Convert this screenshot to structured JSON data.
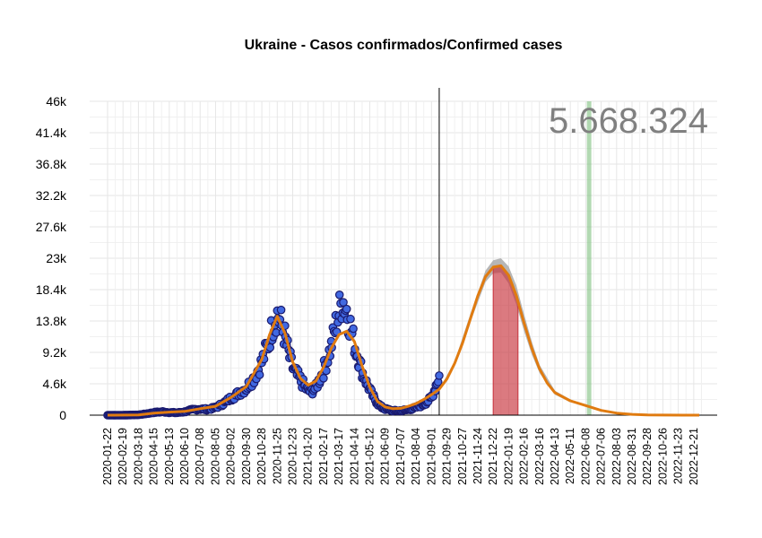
{
  "chart_data": {
    "type": "scatter",
    "title": "Ukraine - Casos confirmados/Confirmed cases",
    "xlabel": "",
    "ylabel": "",
    "ylim": [
      0,
      46000
    ],
    "y_ticks": [
      0,
      4600,
      9200,
      13800,
      18400,
      23000,
      27600,
      32200,
      36800,
      41400,
      46000
    ],
    "y_tick_labels": [
      "0",
      "4.6k",
      "9.2k",
      "13.8k",
      "18.4k",
      "23k",
      "27.6k",
      "32.2k",
      "36.8k",
      "41.4k",
      "46k"
    ],
    "x_range": [
      "2020-01-22",
      "2022-12-31"
    ],
    "x_tick_labels": [
      "2020-01-22",
      "2020-02-19",
      "2020-03-18",
      "2020-04-15",
      "2020-05-13",
      "2020-06-10",
      "2020-07-08",
      "2020-08-05",
      "2020-09-02",
      "2020-09-30",
      "2020-10-28",
      "2020-11-25",
      "2020-12-23",
      "2021-01-20",
      "2021-02-17",
      "2021-03-17",
      "2021-04-14",
      "2021-05-12",
      "2021-06-09",
      "2021-07-07",
      "2021-08-04",
      "2021-09-01",
      "2021-09-29",
      "2021-10-27",
      "2021-11-24",
      "2021-12-22",
      "2022-01-19",
      "2022-02-16",
      "2022-03-16",
      "2022-04-13",
      "2022-05-11",
      "2022-06-08",
      "2022-07-06",
      "2022-08-03",
      "2022-08-31",
      "2022-09-28",
      "2022-10-26",
      "2022-11-23",
      "2022-12-21"
    ],
    "forecast_start": "2021-09-15",
    "total_label": "5.668.324",
    "grid": true,
    "series": [
      {
        "kind": "observed-points",
        "color": "#4169e1",
        "edge_color": "#1a1a6e",
        "points": [
          [
            "2020-01-22",
            0
          ],
          [
            "2020-02-19",
            0
          ],
          [
            "2020-03-18",
            50
          ],
          [
            "2020-04-01",
            200
          ],
          [
            "2020-04-15",
            400
          ],
          [
            "2020-05-01",
            500
          ],
          [
            "2020-05-13",
            400
          ],
          [
            "2020-05-27",
            350
          ],
          [
            "2020-06-10",
            500
          ],
          [
            "2020-06-24",
            800
          ],
          [
            "2020-07-08",
            900
          ],
          [
            "2020-07-22",
            850
          ],
          [
            "2020-08-05",
            1100
          ],
          [
            "2020-08-19",
            1700
          ],
          [
            "2020-09-02",
            2500
          ],
          [
            "2020-09-16",
            3200
          ],
          [
            "2020-09-30",
            4000
          ],
          [
            "2020-10-14",
            5500
          ],
          [
            "2020-10-28",
            7800
          ],
          [
            "2020-11-11",
            11000
          ],
          [
            "2020-11-18",
            13500
          ],
          [
            "2020-11-25",
            14800
          ],
          [
            "2020-12-02",
            13500
          ],
          [
            "2020-12-09",
            11500
          ],
          [
            "2020-12-16",
            9000
          ],
          [
            "2020-12-23",
            7000
          ],
          [
            "2020-12-30",
            6000
          ],
          [
            "2021-01-06",
            5200
          ],
          [
            "2021-01-13",
            4300
          ],
          [
            "2021-01-20",
            3600
          ],
          [
            "2021-01-27",
            3500
          ],
          [
            "2021-02-03",
            4000
          ],
          [
            "2021-02-10",
            5200
          ],
          [
            "2021-02-17",
            6500
          ],
          [
            "2021-02-24",
            8200
          ],
          [
            "2021-03-03",
            10000
          ],
          [
            "2021-03-10",
            12500
          ],
          [
            "2021-03-17",
            15000
          ],
          [
            "2021-03-24",
            17000
          ],
          [
            "2021-03-31",
            15500
          ],
          [
            "2021-04-07",
            13000
          ],
          [
            "2021-04-14",
            10500
          ],
          [
            "2021-04-21",
            8500
          ],
          [
            "2021-04-28",
            6500
          ],
          [
            "2021-05-05",
            5000
          ],
          [
            "2021-05-12",
            3800
          ],
          [
            "2021-05-19",
            2600
          ],
          [
            "2021-05-26",
            1800
          ],
          [
            "2021-06-02",
            1200
          ],
          [
            "2021-06-09",
            900
          ],
          [
            "2021-06-23",
            650
          ],
          [
            "2021-07-07",
            650
          ],
          [
            "2021-07-21",
            800
          ],
          [
            "2021-08-04",
            1100
          ],
          [
            "2021-08-18",
            1600
          ],
          [
            "2021-09-01",
            2500
          ],
          [
            "2021-09-08",
            4000
          ],
          [
            "2021-09-15",
            5800
          ]
        ]
      },
      {
        "kind": "fitted-curve",
        "color": "#e07b10",
        "points": [
          [
            "2020-01-22",
            0
          ],
          [
            "2020-03-18",
            30
          ],
          [
            "2020-04-15",
            300
          ],
          [
            "2020-05-13",
            450
          ],
          [
            "2020-06-10",
            550
          ],
          [
            "2020-07-08",
            950
          ],
          [
            "2020-08-05",
            1300
          ],
          [
            "2020-09-02",
            2600
          ],
          [
            "2020-09-30",
            4200
          ],
          [
            "2020-10-28",
            8200
          ],
          [
            "2020-11-11",
            11800
          ],
          [
            "2020-11-25",
            14500
          ],
          [
            "2020-12-09",
            12000
          ],
          [
            "2020-12-23",
            7800
          ],
          [
            "2021-01-06",
            5400
          ],
          [
            "2021-01-20",
            4400
          ],
          [
            "2021-02-03",
            5000
          ],
          [
            "2021-02-17",
            7000
          ],
          [
            "2021-03-03",
            9800
          ],
          [
            "2021-03-17",
            11800
          ],
          [
            "2021-03-31",
            12300
          ],
          [
            "2021-04-14",
            10800
          ],
          [
            "2021-04-28",
            7200
          ],
          [
            "2021-05-12",
            4100
          ],
          [
            "2021-05-26",
            2000
          ],
          [
            "2021-06-09",
            1200
          ],
          [
            "2021-06-23",
            950
          ],
          [
            "2021-07-07",
            1000
          ],
          [
            "2021-07-21",
            1300
          ],
          [
            "2021-08-04",
            1700
          ],
          [
            "2021-08-18",
            2300
          ],
          [
            "2021-09-01",
            3000
          ],
          [
            "2021-09-15",
            3800
          ],
          [
            "2021-09-29",
            5300
          ],
          [
            "2021-10-13",
            7600
          ],
          [
            "2021-10-27",
            10500
          ],
          [
            "2021-11-10",
            14000
          ],
          [
            "2021-11-24",
            17500
          ],
          [
            "2021-12-08",
            20300
          ],
          [
            "2021-12-22",
            21700
          ],
          [
            "2022-01-05",
            21900
          ],
          [
            "2022-01-19",
            20500
          ],
          [
            "2022-02-02",
            17500
          ],
          [
            "2022-02-16",
            13500
          ],
          [
            "2022-03-02",
            9800
          ],
          [
            "2022-03-16",
            6800
          ],
          [
            "2022-03-30",
            4700
          ],
          [
            "2022-04-13",
            3300
          ],
          [
            "2022-05-11",
            2100
          ],
          [
            "2022-06-08",
            1400
          ],
          [
            "2022-07-06",
            700
          ],
          [
            "2022-08-03",
            300
          ],
          [
            "2022-08-31",
            120
          ],
          [
            "2022-09-28",
            40
          ],
          [
            "2022-10-26",
            10
          ],
          [
            "2022-12-31",
            0
          ]
        ]
      },
      {
        "kind": "forecast-band-upper",
        "color": "#a9a9a9",
        "points": [
          [
            "2021-09-15",
            3800
          ],
          [
            "2021-10-13",
            7900
          ],
          [
            "2021-11-10",
            14700
          ],
          [
            "2021-12-08",
            21200
          ],
          [
            "2021-12-22",
            22700
          ],
          [
            "2022-01-05",
            23000
          ],
          [
            "2022-01-19",
            21800
          ],
          [
            "2022-02-02",
            19000
          ],
          [
            "2022-02-16",
            14800
          ],
          [
            "2022-03-02",
            10800
          ],
          [
            "2022-03-16",
            7400
          ],
          [
            "2022-04-13",
            3600
          ],
          [
            "2022-05-11",
            2300
          ],
          [
            "2022-06-08",
            1500
          ],
          [
            "2022-07-06",
            750
          ],
          [
            "2022-08-31",
            130
          ],
          [
            "2022-12-31",
            0
          ]
        ]
      },
      {
        "kind": "forecast-band-lower",
        "color": "#a9a9a9",
        "points": [
          [
            "2021-09-15",
            3800
          ],
          [
            "2021-10-13",
            7400
          ],
          [
            "2021-11-10",
            13500
          ],
          [
            "2021-12-08",
            19500
          ],
          [
            "2021-12-22",
            20800
          ],
          [
            "2022-01-05",
            20900
          ],
          [
            "2022-01-19",
            19300
          ],
          [
            "2022-02-02",
            16200
          ],
          [
            "2022-02-16",
            12300
          ],
          [
            "2022-03-02",
            8900
          ],
          [
            "2022-03-16",
            6200
          ],
          [
            "2022-04-13",
            3000
          ],
          [
            "2022-05-11",
            1900
          ],
          [
            "2022-06-08",
            1300
          ],
          [
            "2022-07-06",
            650
          ],
          [
            "2022-08-31",
            110
          ],
          [
            "2022-12-31",
            0
          ]
        ]
      }
    ],
    "highlight_regions": [
      {
        "color": "#c8323c",
        "from": "2021-12-22",
        "to": "2022-02-05",
        "kind": "peak-area-under-curve"
      },
      {
        "color": "#7fbf7f",
        "from": "2022-06-10",
        "to": "2022-06-16",
        "kind": "vertical-band"
      }
    ]
  }
}
